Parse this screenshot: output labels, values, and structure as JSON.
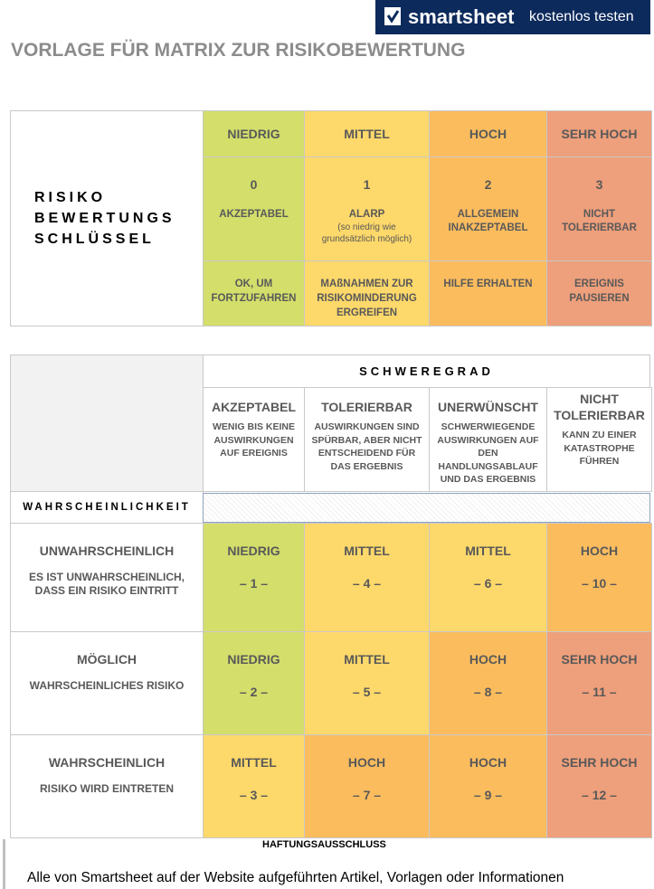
{
  "banner": {
    "brand": "smartsheet",
    "cta": "kostenlos testen"
  },
  "title": "VORLAGE FÜR MATRIX ZUR RISIKOBEWERTUNG",
  "key": {
    "label_lines": [
      "RISIKO",
      "BEWERTUNGS",
      "SCHLÜSSEL"
    ],
    "columns": [
      {
        "level": "NIEDRIG",
        "number": 0,
        "meaning": "AKZEPTABEL",
        "action": "OK, UM FORTZUFAHREN",
        "color": "#d3de6b"
      },
      {
        "level": "MITTEL",
        "number": 1,
        "meaning": "ALARP",
        "note": "(so niedrig wie grundsätzlich möglich)",
        "action": "MAßNAHMEN ZUR RISIKOMINDERUNG ERGREIFEN",
        "color": "#fdd86a"
      },
      {
        "level": "HOCH",
        "number": 2,
        "meaning": "ALLGEMEIN INAKZEPTABEL",
        "action": "HILFE ERHALTEN",
        "color": "#fbbc5e"
      },
      {
        "level": "SEHR HOCH",
        "number": 3,
        "meaning": "NICHT TOLERIERBAR",
        "action": "EREIGNIS PAUSIEREN",
        "color": "#ee9f7b"
      }
    ]
  },
  "matrix": {
    "severity_label": "SCHWEREGRAD",
    "severity": [
      {
        "name": "AKZEPTABEL",
        "desc": "WENIG BIS KEINE AUSWIRKUNGEN AUF EREIGNIS"
      },
      {
        "name": "TOLERIERBAR",
        "desc": "AUSWIRKUNGEN SIND SPÜRBAR, ABER NICHT ENTSCHEIDEND FÜR DAS ERGEBNIS"
      },
      {
        "name": "UNERWÜNSCHT",
        "desc": "SCHWERWIEGENDE AUSWIRKUNGEN AUF DEN HANDLUNGSABLAUF UND DAS ERGEBNIS"
      },
      {
        "name": "NICHT TOLERIERBAR",
        "desc": "KANN ZU EINER KATASTROPHE FÜHREN"
      }
    ],
    "likelihood_label": "WAHRSCHEINLICHKEIT",
    "rows": [
      {
        "name": "UNWAHRSCHEINLICH",
        "desc": "ES IST UNWAHRSCHEINLICH, DASS EIN RISIKO EINTRITT",
        "cells": [
          {
            "level": "NIEDRIG",
            "score": "– 1 –",
            "color": "#d3de6b"
          },
          {
            "level": "MITTEL",
            "score": "– 4 –",
            "color": "#fdd86a"
          },
          {
            "level": "MITTEL",
            "score": "– 6 –",
            "color": "#fdd86a"
          },
          {
            "level": "HOCH",
            "score": "– 10 –",
            "color": "#fbbc5e"
          }
        ]
      },
      {
        "name": "MÖGLICH",
        "desc": "WAHRSCHEINLICHES RISIKO",
        "cells": [
          {
            "level": "NIEDRIG",
            "score": "– 2 –",
            "color": "#d3de6b"
          },
          {
            "level": "MITTEL",
            "score": "– 5 –",
            "color": "#fdd86a"
          },
          {
            "level": "HOCH",
            "score": "– 8 –",
            "color": "#fbbc5e"
          },
          {
            "level": "SEHR HOCH",
            "score": "– 11 –",
            "color": "#ee9f7b"
          }
        ]
      },
      {
        "name": "WAHRSCHEINLICH",
        "desc": "RISIKO WIRD EINTRETEN",
        "cells": [
          {
            "level": "MITTEL",
            "score": "– 3 –",
            "color": "#fdd86a"
          },
          {
            "level": "HOCH",
            "score": "– 7 –",
            "color": "#fbbc5e"
          },
          {
            "level": "HOCH",
            "score": "– 9 –",
            "color": "#fbbc5e"
          },
          {
            "level": "SEHR HOCH",
            "score": "– 12 –",
            "color": "#ee9f7b"
          }
        ]
      }
    ]
  },
  "disclaimer": {
    "title": "HAFTUNGSAUSSCHLUSS",
    "text": "Alle von Smartsheet auf der Website aufgeführten Artikel, Vorlagen oder Informationen"
  }
}
